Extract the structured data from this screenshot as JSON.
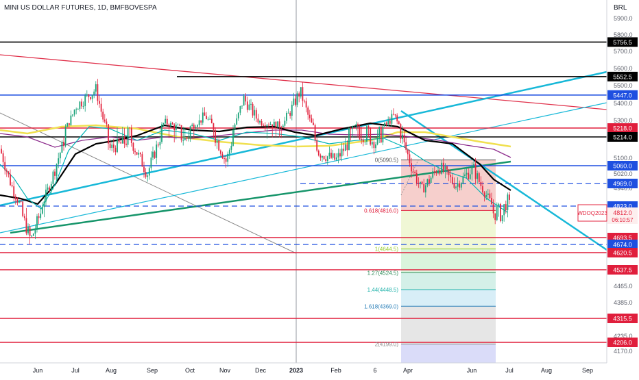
{
  "chart_data": {
    "type": "candlestick",
    "title": "MINI US DOLLAR FUTURES, 1D, BMFBOVESPA",
    "currency": "BRL",
    "symbol": "WDOQ2023",
    "last_price": 4812.0,
    "countdown": "06:10:57",
    "y_ticks": [
      5900,
      5800,
      5700,
      5600,
      5500,
      5400,
      5300,
      5100,
      5020,
      4940,
      4465,
      4385,
      4235,
      4170
    ],
    "x_ticks": [
      "Jun",
      "Jul",
      "Aug",
      "Sep",
      "Oct",
      "Nov",
      "Dec",
      "2023",
      "Feb",
      "6",
      "Apr",
      "Jun",
      "Jul",
      "Aug",
      "Sep"
    ],
    "horizontal_levels": [
      {
        "value": 5756.5,
        "label": "5756.5",
        "color": "#000000",
        "style": "solid"
      },
      {
        "value": 5552.5,
        "label": "5552.5",
        "color": "#000000",
        "style": "solid"
      },
      {
        "value": 5447.0,
        "label": "5447.0",
        "color": "#1e4fe0",
        "style": "solid"
      },
      {
        "value": 5218.0,
        "label": "5218.0",
        "color": "#e01e3c",
        "style": "solid"
      },
      {
        "value": 5214.0,
        "label": "5214.0",
        "color": "#000000",
        "style": "solid"
      },
      {
        "value": 5060.0,
        "label": "5060.0",
        "color": "#1e4fe0",
        "style": "solid"
      },
      {
        "value": 4969.0,
        "label": "4969.0",
        "color": "#1e4fe0",
        "style": "dashed"
      },
      {
        "value": 4823.0,
        "label": "4823.0",
        "color": "#1e4fe0",
        "style": "dashed"
      },
      {
        "value": 4693.5,
        "label": "4693.5",
        "color": "#e01e3c",
        "style": "solid"
      },
      {
        "value": 4674.0,
        "label": "4674.0",
        "color": "#1e4fe0",
        "style": "dashed"
      },
      {
        "value": 4620.5,
        "label": "4620.5",
        "color": "#e01e3c",
        "style": "solid"
      },
      {
        "value": 4537.5,
        "label": "4537.5",
        "color": "#e01e3c",
        "style": "solid"
      },
      {
        "value": 4315.5,
        "label": "4315.5",
        "color": "#e01e3c",
        "style": "solid"
      },
      {
        "value": 4206.0,
        "label": "4206.0",
        "color": "#e01e3c",
        "style": "solid"
      }
    ],
    "fib_levels": [
      {
        "label": "0(5090.5)",
        "value": 5090.5,
        "color": "#555555"
      },
      {
        "label": "0.618(4816.0)",
        "value": 4816.0,
        "color": "#e01e3c"
      },
      {
        "label": "1(4644.5)",
        "value": 4644.5,
        "color": "#9acd32"
      },
      {
        "label": "1.27(4524.5)",
        "value": 4524.5,
        "color": "#2e8b57"
      },
      {
        "label": "1.44(4448.5)",
        "value": 4448.5,
        "color": "#20b2aa"
      },
      {
        "label": "1.618(4369.0)",
        "value": 4369.0,
        "color": "#2a7fb8"
      },
      {
        "label": "2(4199.0)",
        "value": 4199.0,
        "color": "#888888"
      }
    ],
    "colors": {
      "up": "#1aa37a",
      "down": "#e3253f",
      "fast_ma": "#00b3b3",
      "slow_ma": "#000000",
      "ma_purple": "#8b2a8b",
      "ma_yellow": "#f0e050",
      "trend_cyan": "#17b8d8",
      "trend_green": "#16956a",
      "trend_red": "#e0304a"
    }
  }
}
